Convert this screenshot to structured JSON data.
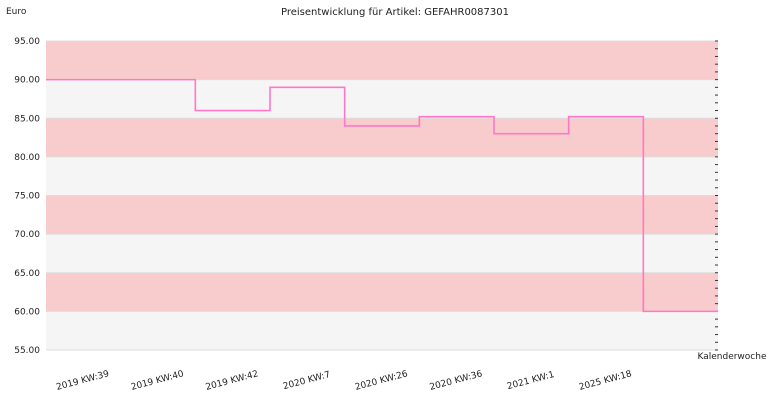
{
  "chart_data": {
    "type": "line",
    "step": true,
    "title": "Preisentwicklung für Artikel: GEFAHR0087301",
    "ylabel": "Euro",
    "xlabel": "Kalenderwoche",
    "ylim": [
      55,
      95
    ],
    "yticks": [
      "55.00",
      "60.00",
      "65.00",
      "70.00",
      "75.00",
      "80.00",
      "85.00",
      "90.00",
      "95.00"
    ],
    "x_tick_labels": [
      "2019 KW:39",
      "2019 KW:40",
      "2019 KW:42",
      "2020 KW:7",
      "2020 KW:26",
      "2020 KW:36",
      "2021 KW:1",
      "2025 KW:18"
    ],
    "series": [
      {
        "values": [
          90.0,
          90.0,
          86.0,
          89.0,
          84.0,
          85.2,
          83.0,
          85.2,
          60.0
        ]
      }
    ],
    "colors": {
      "line": "#ff77c8",
      "band_pink": "#f8cccc",
      "band_light": "#f5f5f5",
      "grid": "#dddddd"
    }
  }
}
